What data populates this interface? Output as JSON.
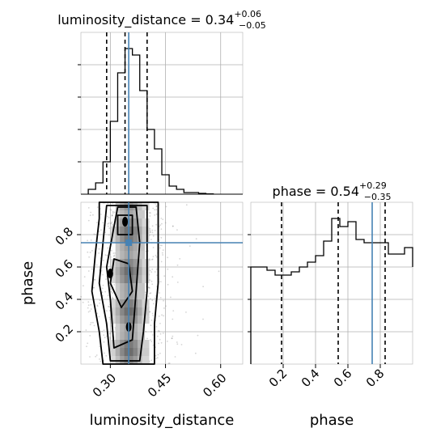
{
  "chart_data": {
    "type": "corner",
    "parameters": [
      "luminosity_distance",
      "phase"
    ],
    "truths": {
      "luminosity_distance": 0.35,
      "phase": 0.75
    },
    "truth_color": "#4682b4",
    "grid": true,
    "panels": [
      {
        "id": "hist-luminosity-distance",
        "type": "histogram",
        "title_main": "luminosity_distance = 0.34",
        "title_upper": "+0.06",
        "title_lower": "−0.05",
        "xlim": [
          0.22,
          0.66
        ],
        "ylim": [
          0,
          1.0
        ],
        "bins": [
          0.24,
          0.26,
          0.28,
          0.3,
          0.32,
          0.34,
          0.36,
          0.38,
          0.4,
          0.42,
          0.44,
          0.46,
          0.48,
          0.5,
          0.52,
          0.54,
          0.56,
          0.58
        ],
        "counts": [
          0.03,
          0.07,
          0.2,
          0.45,
          0.75,
          0.9,
          0.86,
          0.64,
          0.4,
          0.28,
          0.12,
          0.05,
          0.03,
          0.01,
          0.01,
          0.005,
          0.002
        ],
        "quantiles": [
          0.29,
          0.34,
          0.4
        ]
      },
      {
        "id": "hist-phase",
        "type": "histogram",
        "title_main": "phase = 0.54",
        "title_upper": "+0.29",
        "title_lower": "−0.35",
        "xlim": [
          0.0,
          1.0
        ],
        "ylim": [
          0,
          1.0
        ],
        "bins": [
          0.0,
          0.05,
          0.1,
          0.15,
          0.2,
          0.25,
          0.3,
          0.35,
          0.4,
          0.45,
          0.5,
          0.55,
          0.6,
          0.65,
          0.7,
          0.75,
          0.8,
          0.85,
          0.9,
          0.95,
          1.0
        ],
        "counts": [
          0.6,
          0.6,
          0.58,
          0.55,
          0.55,
          0.57,
          0.6,
          0.63,
          0.67,
          0.76,
          0.9,
          0.85,
          0.88,
          0.77,
          0.75,
          0.75,
          0.75,
          0.68,
          0.68,
          0.72,
          0.6
        ],
        "quantiles": [
          0.19,
          0.54,
          0.83
        ]
      },
      {
        "id": "scatter-2d",
        "type": "2d-density",
        "x_param": "luminosity_distance",
        "y_param": "phase",
        "xlim": [
          0.22,
          0.66
        ],
        "ylim": [
          0.0,
          1.0
        ],
        "xticks": [
          0.3,
          0.45,
          0.6
        ],
        "xtick_labels": [
          "0.30",
          "0.45",
          "0.60"
        ],
        "yticks": [
          0.2,
          0.4,
          0.6,
          0.8
        ],
        "ytick_labels": [
          "0.2",
          "0.4",
          "0.6",
          "0.8"
        ],
        "xlabel": "luminosity_distance",
        "ylabel": "phase"
      }
    ],
    "phase_axis": {
      "xticks": [
        0.2,
        0.4,
        0.6,
        0.8
      ],
      "xtick_labels": [
        "0.2",
        "0.4",
        "0.6",
        "0.8"
      ],
      "xlabel": "phase"
    }
  }
}
